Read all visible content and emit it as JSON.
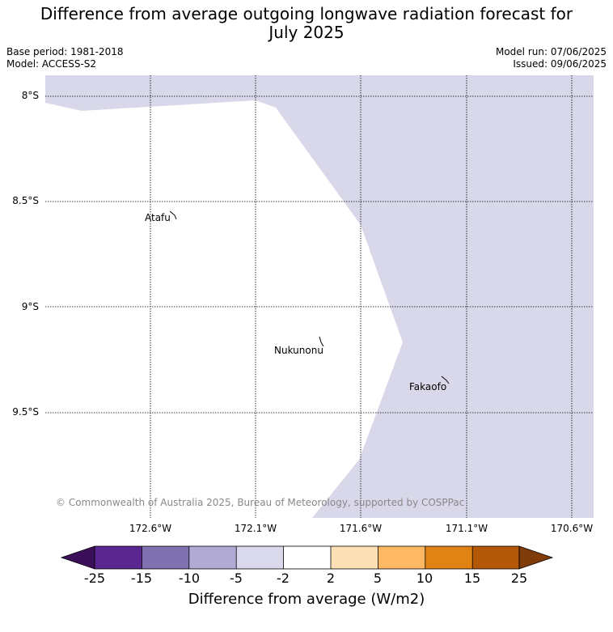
{
  "title_line1": "Difference from average outgoing longwave radiation forecast for",
  "title_line2": "July 2025",
  "base_period": "Base period: 1981-2018",
  "model": "Model: ACCESS-S2",
  "model_run": "Model run: 07/06/2025",
  "issued": "Issued: 09/06/2025",
  "latitudes": [
    "8°S",
    "8.5°S",
    "9°S",
    "9.5°S"
  ],
  "longitudes": [
    "172.6°W",
    "172.1°W",
    "171.6°W",
    "171.1°W",
    "170.6°W"
  ],
  "places": [
    {
      "name": "Atafu"
    },
    {
      "name": "Nukunonu"
    },
    {
      "name": "Fakaofo"
    }
  ],
  "copyright": "© Commonwealth of Australia 2025, Bureau of Meteorology, supported by COSPPac",
  "colorbar": {
    "title": "Difference from average (W/m2)",
    "ticks": [
      "-25",
      "-15",
      "-10",
      "-5",
      "-2",
      "2",
      "5",
      "10",
      "15",
      "25"
    ],
    "colors": [
      "#3b0f5a",
      "#5a2690",
      "#8071b0",
      "#b0aad4",
      "#d9d9eb",
      "#ffffff",
      "#fee0b6",
      "#fdb863",
      "#e08214",
      "#b35806",
      "#7f3b08"
    ]
  },
  "map_fill_color": "#d8d8ea"
}
